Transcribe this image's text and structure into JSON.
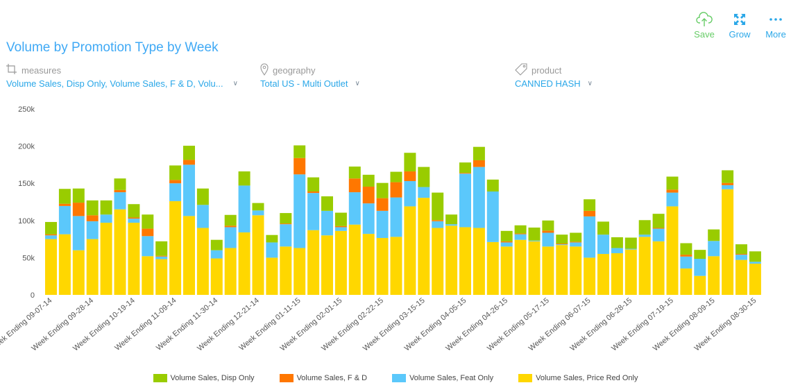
{
  "header": {
    "title": "Volume by Promotion Type by Week"
  },
  "toolbar": {
    "save_label": "Save",
    "save_icon": "cloud-upload-icon",
    "save_color": "#66cc66",
    "grow_label": "Grow",
    "grow_icon": "expand-icon",
    "grow_color": "#2aa7e8",
    "more_label": "More",
    "more_icon": "ellipsis-icon"
  },
  "filters": {
    "measures": {
      "label": "measures",
      "icon": "crop-icon",
      "value": "Volume Sales, Disp Only, Volume Sales, F & D, Volu..."
    },
    "geography": {
      "label": "geography",
      "icon": "map-pin-icon",
      "value": "Total US - Multi Outlet"
    },
    "product": {
      "label": "product",
      "icon": "tag-icon",
      "value": "CANNED HASH"
    }
  },
  "chart_data": {
    "type": "bar",
    "stacked": true,
    "title": "Volume by Promotion Type by Week",
    "xlabel": "",
    "ylabel": "",
    "ylim": [
      0,
      250000
    ],
    "yticks": [
      "0",
      "50k",
      "100k",
      "150k",
      "200k",
      "250k"
    ],
    "grid": false,
    "legend_position": "bottom",
    "x_tick_labels": [
      "Week Ending 09-07-14",
      "Week Ending 09-28-14",
      "Week Ending 10-19-14",
      "Week Ending 11-09-14",
      "Week Ending 11-30-14",
      "Week Ending 12-21-14",
      "Week Ending 01-11-15",
      "Week Ending 02-01-15",
      "Week Ending 02-22-15",
      "Week Ending 03-15-15",
      "Week Ending 04-05-15",
      "Week Ending 04-26-15",
      "Week Ending 05-17-15",
      "Week Ending 06-07-15",
      "Week Ending 06-28-15",
      "Week Ending 07-19-15",
      "Week Ending 08-09-15",
      "Week Ending 08-30-15"
    ],
    "x_tick_every": 3,
    "categories_count_weeks": 52,
    "series": [
      {
        "name": "Volume Sales, Price Red Only",
        "color": "#ffd700",
        "values": [
          75000,
          81500,
          60000,
          75000,
          97000,
          115000,
          97000,
          52000,
          48000,
          126000,
          106000,
          90000,
          49000,
          63000,
          84000,
          107000,
          50000,
          65000,
          63000,
          87000,
          80000,
          86000,
          94500,
          82000,
          76500,
          78000,
          119000,
          130500,
          90000,
          93000,
          91000,
          90000,
          71000,
          65000,
          74000,
          72000,
          65000,
          67000,
          65000,
          50000,
          55000,
          56000,
          61000,
          78000,
          72000,
          119000,
          35500,
          25500,
          52000,
          142000,
          47000,
          42000
        ]
      },
      {
        "name": "Volume Sales, Feat Only",
        "color": "#5bc8fb",
        "values": [
          5000,
          38000,
          46000,
          24000,
          11000,
          23000,
          5500,
          27000,
          3500,
          24000,
          69000,
          31000,
          11000,
          28000,
          63000,
          6500,
          20500,
          30000,
          99000,
          50000,
          33000,
          5000,
          43500,
          41000,
          36500,
          53000,
          34000,
          14500,
          9000,
          2000,
          72000,
          82000,
          68000,
          5500,
          7500,
          1000,
          18500,
          1000,
          5500,
          55500,
          26000,
          7000,
          1000,
          3000,
          17000,
          18500,
          16000,
          23000,
          20500,
          5500,
          7000,
          2500
        ]
      },
      {
        "name": "Volume Sales, F & D",
        "color": "#ff7700",
        "values": [
          1500,
          3000,
          18000,
          8000,
          0,
          3000,
          1500,
          10000,
          1000,
          4500,
          6500,
          0,
          0,
          2000,
          0,
          0,
          0,
          1000,
          22000,
          2000,
          0,
          1500,
          18500,
          22500,
          17000,
          20500,
          13000,
          0,
          1500,
          0,
          1000,
          9000,
          0,
          1500,
          1000,
          0,
          3000,
          1000,
          1000,
          7500,
          0,
          0,
          0,
          0,
          1000,
          4000,
          2500,
          0,
          0,
          3000,
          1000,
          0
        ]
      },
      {
        "name": "Volume Sales, Disp Only",
        "color": "#99cc00",
        "values": [
          16500,
          20000,
          19000,
          20000,
          19000,
          15500,
          18000,
          19000,
          19500,
          19500,
          19000,
          22000,
          14000,
          14500,
          19000,
          10000,
          10000,
          14000,
          17000,
          19000,
          19500,
          18000,
          16000,
          16000,
          20500,
          14000,
          25000,
          27000,
          37000,
          13000,
          14000,
          18000,
          16000,
          14000,
          11000,
          17500,
          13500,
          12000,
          12000,
          15500,
          17500,
          14500,
          15000,
          19500,
          19000,
          17500,
          15500,
          12000,
          15500,
          17000,
          13000,
          14000
        ]
      }
    ],
    "legend_order": [
      "Volume Sales, Disp Only",
      "Volume Sales, F & D",
      "Volume Sales, Feat Only",
      "Volume Sales, Price Red Only"
    ]
  }
}
